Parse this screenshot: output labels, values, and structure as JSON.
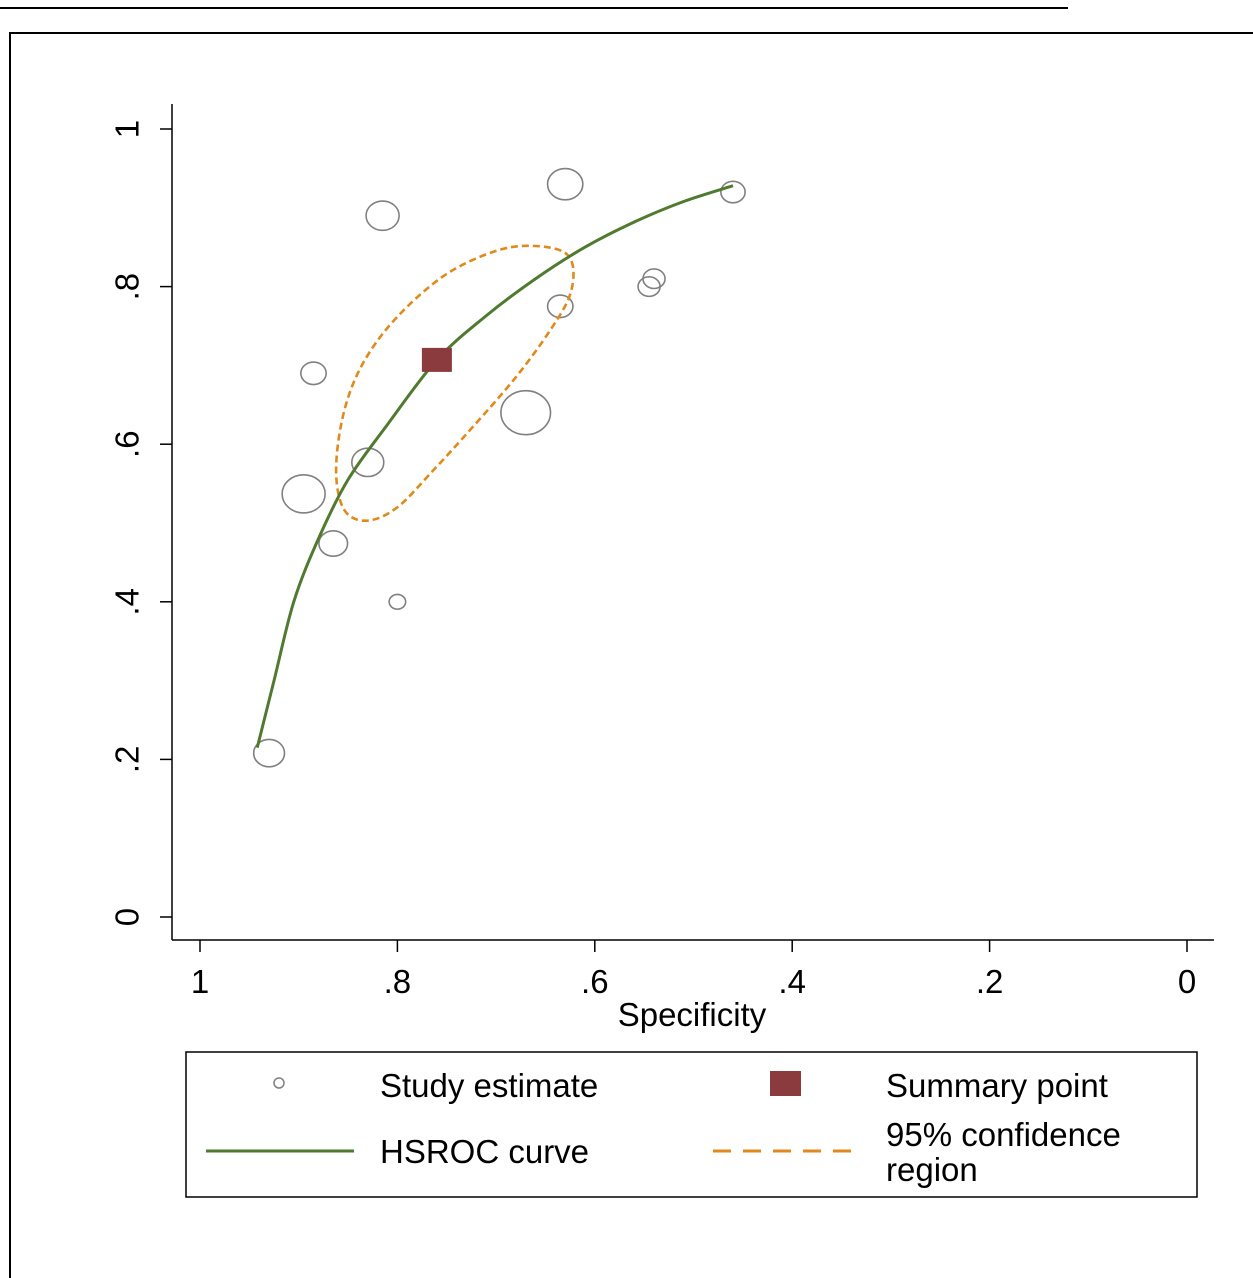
{
  "chart_data": {
    "type": "scatter",
    "title": "",
    "xlabel": "Specificity",
    "ylabel": "",
    "x_reversed": true,
    "xlim": [
      1,
      0
    ],
    "ylim": [
      0,
      1
    ],
    "x_ticks": [
      1,
      0.8,
      0.6,
      0.4,
      0.2,
      0
    ],
    "x_tick_labels": [
      "1",
      ".8",
      ".6",
      ".4",
      ".2",
      "0"
    ],
    "y_ticks": [
      0,
      0.2,
      0.4,
      0.6,
      0.8,
      1
    ],
    "y_tick_labels": [
      "0",
      ".2",
      ".4",
      ".6",
      ".8",
      "1"
    ],
    "grid": false,
    "legend_position": "bottom",
    "series": [
      {
        "name": "Study estimate",
        "kind": "bubble",
        "color": "#808080",
        "points": [
          {
            "x": 0.63,
            "y": 0.93,
            "size": 3.2
          },
          {
            "x": 0.46,
            "y": 0.92,
            "size": 2.2
          },
          {
            "x": 0.815,
            "y": 0.89,
            "size": 3.0
          },
          {
            "x": 0.54,
            "y": 0.81,
            "size": 2.0
          },
          {
            "x": 0.545,
            "y": 0.8,
            "size": 2.0
          },
          {
            "x": 0.635,
            "y": 0.775,
            "size": 2.3
          },
          {
            "x": 0.885,
            "y": 0.69,
            "size": 2.3
          },
          {
            "x": 0.67,
            "y": 0.64,
            "size": 4.5
          },
          {
            "x": 0.83,
            "y": 0.577,
            "size": 2.9
          },
          {
            "x": 0.895,
            "y": 0.537,
            "size": 3.9
          },
          {
            "x": 0.865,
            "y": 0.474,
            "size": 2.6
          },
          {
            "x": 0.8,
            "y": 0.4,
            "size": 1.5
          },
          {
            "x": 0.93,
            "y": 0.208,
            "size": 2.8
          }
        ]
      },
      {
        "name": "Summary point",
        "kind": "marker",
        "color": "#8b3a3e",
        "points": [
          {
            "x": 0.76,
            "y": 0.707
          }
        ]
      },
      {
        "name": "HSROC curve",
        "kind": "line",
        "color": "#4f7a2f",
        "points": [
          {
            "x": 0.942,
            "y": 0.215
          },
          {
            "x": 0.925,
            "y": 0.3
          },
          {
            "x": 0.905,
            "y": 0.4
          },
          {
            "x": 0.88,
            "y": 0.48
          },
          {
            "x": 0.85,
            "y": 0.555
          },
          {
            "x": 0.81,
            "y": 0.625
          },
          {
            "x": 0.76,
            "y": 0.707
          },
          {
            "x": 0.71,
            "y": 0.763
          },
          {
            "x": 0.66,
            "y": 0.81
          },
          {
            "x": 0.61,
            "y": 0.85
          },
          {
            "x": 0.56,
            "y": 0.882
          },
          {
            "x": 0.51,
            "y": 0.908
          },
          {
            "x": 0.46,
            "y": 0.928
          }
        ]
      },
      {
        "name": "95% confidence region",
        "kind": "dashed-region",
        "color": "#e08a1e",
        "points": [
          {
            "x": 0.685,
            "y": 0.85
          },
          {
            "x": 0.64,
            "y": 0.848
          },
          {
            "x": 0.623,
            "y": 0.83
          },
          {
            "x": 0.625,
            "y": 0.79
          },
          {
            "x": 0.645,
            "y": 0.745
          },
          {
            "x": 0.68,
            "y": 0.685
          },
          {
            "x": 0.725,
            "y": 0.62
          },
          {
            "x": 0.765,
            "y": 0.565
          },
          {
            "x": 0.8,
            "y": 0.52
          },
          {
            "x": 0.83,
            "y": 0.503
          },
          {
            "x": 0.853,
            "y": 0.515
          },
          {
            "x": 0.862,
            "y": 0.56
          },
          {
            "x": 0.857,
            "y": 0.625
          },
          {
            "x": 0.842,
            "y": 0.685
          },
          {
            "x": 0.815,
            "y": 0.74
          },
          {
            "x": 0.775,
            "y": 0.792
          },
          {
            "x": 0.735,
            "y": 0.827
          }
        ]
      }
    ]
  },
  "legend": {
    "items": [
      {
        "label": "Study estimate",
        "symbol": "circle"
      },
      {
        "label": "Summary point",
        "symbol": "square"
      },
      {
        "label": "HSROC curve",
        "symbol": "line"
      },
      {
        "label_line1": "95% confidence",
        "label_line2": "region",
        "symbol": "dashed-line"
      }
    ]
  }
}
